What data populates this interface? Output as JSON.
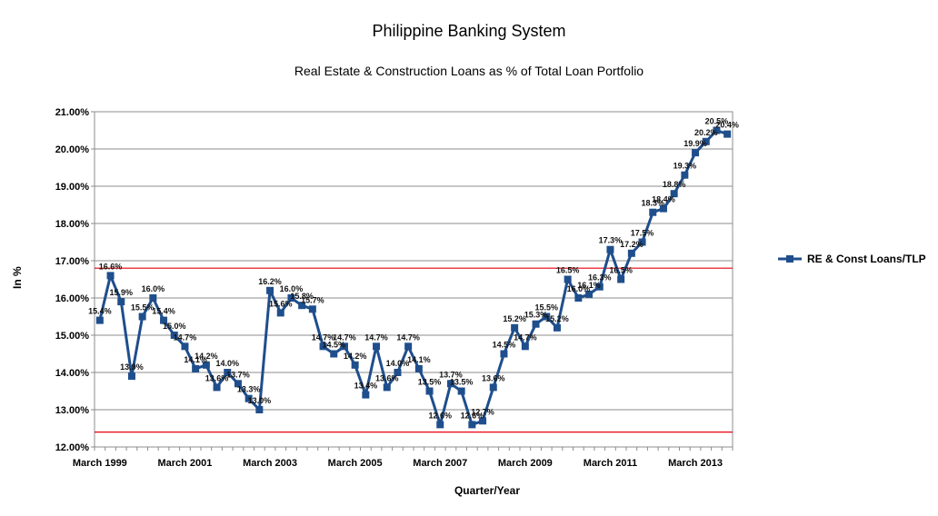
{
  "chart_data": {
    "type": "line",
    "title": "Philippine Banking System",
    "subtitle": "Real Estate & Construction Loans as % of Total Loan Portfolio",
    "xlabel": "Quarter/Year",
    "ylabel": "In %",
    "ylim": [
      12.0,
      21.0
    ],
    "y_ticks": [
      "12.00%",
      "13.00%",
      "14.00%",
      "15.00%",
      "16.00%",
      "17.00%",
      "18.00%",
      "19.00%",
      "20.00%",
      "21.00%"
    ],
    "x_tick_labels": [
      "March 1999",
      "March 2001",
      "March 2003",
      "March 2005",
      "March 2007",
      "March 2009",
      "March 2011",
      "March 2013"
    ],
    "grid": "horizontal",
    "legend_position": "right",
    "reference_lines": [
      16.8,
      12.4
    ],
    "reference_line_color": "#e8000b",
    "series_color": "#1f4e8c",
    "series": [
      {
        "name": "RE & Const Loans/TLP",
        "values": [
          15.4,
          16.6,
          15.9,
          13.9,
          15.5,
          16.0,
          15.4,
          15.0,
          14.7,
          14.1,
          14.2,
          13.6,
          14.0,
          13.7,
          13.3,
          13.0,
          16.2,
          15.6,
          16.0,
          15.8,
          15.7,
          14.7,
          14.5,
          14.7,
          14.2,
          13.4,
          14.7,
          13.6,
          14.0,
          14.7,
          14.1,
          13.5,
          12.6,
          13.7,
          13.5,
          12.6,
          12.7,
          13.6,
          14.5,
          15.2,
          14.7,
          15.3,
          15.5,
          15.2,
          16.5,
          16.0,
          16.1,
          16.3,
          17.3,
          16.5,
          17.2,
          17.5,
          18.3,
          18.4,
          18.8,
          19.3,
          19.9,
          20.2,
          20.5,
          20.4
        ],
        "labels": [
          "15.4%",
          "16.6%",
          "15.9%",
          "13.9%",
          "15.5%",
          "16.0%",
          "15.4%",
          "15.0%",
          "14.7%",
          "14.1%",
          "14.2%",
          "13.6%",
          "14.0%",
          "13.7%",
          "13.3%",
          "13.0%",
          "16.2%",
          "15.6%",
          "16.0%",
          "15.8%",
          "15.7%",
          "14.7%",
          "14.5%",
          "14.7%",
          "14.2%",
          "13.4%",
          "14.7%",
          "13.6%",
          "14.0%",
          "14.7%",
          "14.1%",
          "13.5%",
          "12.6%",
          "13.7%",
          "13.5%",
          "12.6%",
          "12.7%",
          "13.6%",
          "14.5%",
          "15.2%",
          "14.7%",
          "15.3%",
          "15.5%",
          "15.2%",
          "16.5%",
          "16.0%",
          "16.1%",
          "16.3%",
          "17.3%",
          "16.5%",
          "17.2%",
          "17.5%",
          "18.3%",
          "18.4%",
          "18.8%",
          "19.3%",
          "19.9%",
          "20.2%",
          "20.5%",
          "20.4%"
        ]
      }
    ]
  }
}
